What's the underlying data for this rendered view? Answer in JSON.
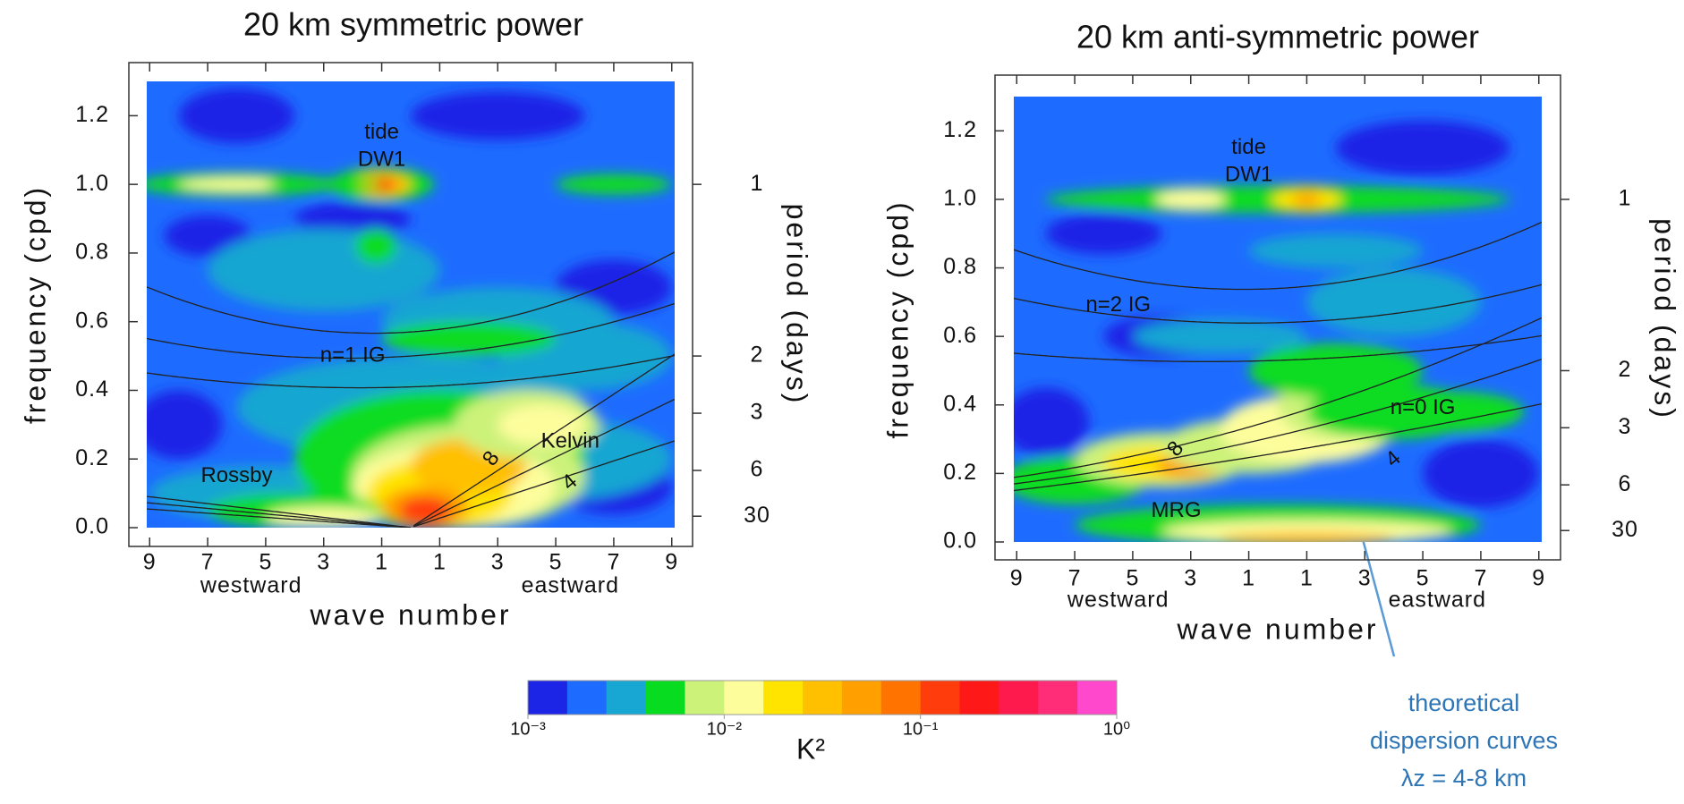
{
  "chart_data": [
    {
      "type": "contour",
      "title": "20 km  symmetric power",
      "xlabel": "wave number",
      "ylabel": "frequency (cpd)",
      "y2label": "period (days)",
      "xlim": [
        -9.1,
        9.1
      ],
      "ylim": [
        0,
        1.3
      ],
      "xticks": [
        {
          "value": -9,
          "label": "9"
        },
        {
          "value": -7,
          "label": "7"
        },
        {
          "value": -5,
          "label": "5"
        },
        {
          "value": -3,
          "label": "3"
        },
        {
          "value": -1,
          "label": "1"
        },
        1,
        3,
        5,
        7,
        9
      ],
      "yticks": [
        {
          "value": 0,
          "label": "0.0"
        },
        0.2,
        0.4,
        0.6,
        0.8,
        {
          "value": 1,
          "label": "1.0"
        },
        1.2
      ],
      "y2ticks": [
        1,
        2,
        3,
        6,
        30
      ],
      "y2scale": "reciprocal",
      "direction_labels": [
        "westward",
        "eastward"
      ],
      "annotations": [
        "tide",
        "DW1",
        "n=1 IG",
        "Rossby",
        "Kelvin",
        "8",
        "4"
      ]
    },
    {
      "type": "contour",
      "title": "20 km  anti-symmetric power",
      "xlabel": "wave number",
      "ylabel": "frequency (cpd)",
      "y2label": "period (days)",
      "xlim": [
        -9.1,
        9.1
      ],
      "ylim": [
        0,
        1.3
      ],
      "xticks": [
        {
          "value": -9,
          "label": "9"
        },
        {
          "value": -7,
          "label": "7"
        },
        {
          "value": -5,
          "label": "5"
        },
        {
          "value": -3,
          "label": "3"
        },
        {
          "value": -1,
          "label": "1"
        },
        1,
        3,
        5,
        7,
        9
      ],
      "yticks": [
        {
          "value": 0,
          "label": "0.0"
        },
        0.2,
        0.4,
        0.6,
        0.8,
        {
          "value": 1,
          "label": "1.0"
        },
        1.2
      ],
      "y2ticks": [
        1,
        2,
        3,
        6,
        30
      ],
      "y2scale": "reciprocal",
      "direction_labels": [
        "westward",
        "eastward"
      ],
      "annotations": [
        "tide",
        "DW1",
        "n=2 IG",
        "n=0 IG",
        "8",
        "4",
        "MRG"
      ]
    },
    {
      "type": "colorbar",
      "label": "K²",
      "log": true,
      "lim": [
        0.001,
        1
      ],
      "colors": [
        "#1c24e6",
        "#1e6cff",
        "#18a6d2",
        "#08dc20",
        "#ccf27a",
        "#fdfd9c",
        "#ffe400",
        "#ffc000",
        "#ffa000",
        "#ff7400",
        "#ff3c0c",
        "#ff1818",
        "#ff1a4e",
        "#ff2c78",
        "#ff48cc"
      ],
      "ticks": [
        {
          "value": 0.001,
          "label": "10⁻³"
        },
        {
          "value": 0.01,
          "label": "10⁻²"
        },
        {
          "value": 0.1,
          "label": "10⁻¹"
        },
        {
          "value": 1,
          "label": "10⁰"
        }
      ]
    }
  ],
  "annotation": {
    "lines": [
      "theoretical",
      "dispersion curves",
      "λz = 4-8 km"
    ]
  }
}
